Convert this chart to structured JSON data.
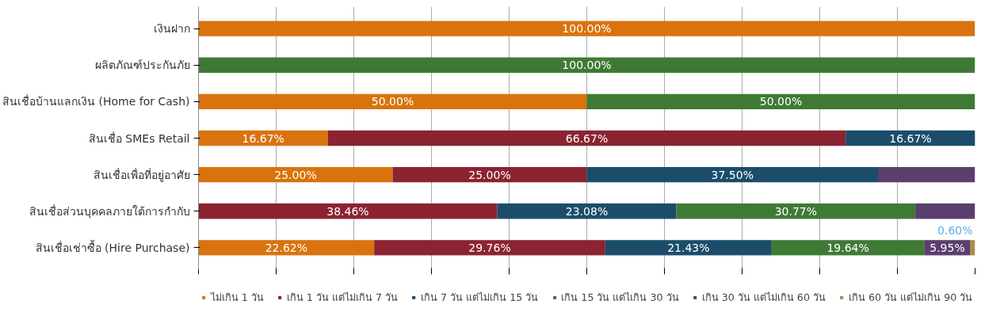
{
  "chart_data": {
    "type": "bar",
    "orientation": "horizontal",
    "stacked": true,
    "categories": [
      "เงินฝาก",
      "ผลิตภัณฑ์ประกันภัย",
      "สินเชื่อบ้านแลกเงิน (Home for Cash)",
      "สินเชื่อ SMEs Retail",
      "สินเชื่อเพื่อที่อยู่อาศัย",
      "สินเชื่อส่วนบุคคลภายใต้การกำกับ",
      "สินเชื่อเช่าซื้อ (Hire Purchase)"
    ],
    "series": [
      {
        "name": "ไม่เกิน 1 วัน",
        "color": "#d9730d",
        "values": [
          100,
          0,
          50,
          16.67,
          25,
          0,
          22.62
        ],
        "value_labels": [
          "100.00%",
          null,
          "50.00%",
          "16.67%",
          "25.00%",
          null,
          "22.62%"
        ]
      },
      {
        "name": "เกิน 1 วัน แต่ไม่เกิน 7 วัน",
        "color": "#8b2331",
        "values": [
          0,
          0,
          0,
          66.67,
          25,
          38.46,
          29.76
        ],
        "value_labels": [
          null,
          null,
          null,
          "66.67%",
          "25.00%",
          "38.46%",
          "29.76%"
        ]
      },
      {
        "name": "เกิน 7 วัน แต่ไม่เกิน 15 วัน",
        "color": "#1b4d6b",
        "values": [
          0,
          0,
          0,
          16.67,
          37.5,
          23.08,
          21.43
        ],
        "value_labels": [
          null,
          null,
          null,
          "16.67%",
          "37.50%",
          "23.08%",
          "21.43%"
        ]
      },
      {
        "name": "เกิน 15 วัน แต่ไเกิน 30 วัน",
        "color": "#3f7a35",
        "values": [
          0,
          100,
          50,
          0,
          0,
          30.77,
          19.64
        ],
        "value_labels": [
          null,
          "100.00%",
          "50.00%",
          null,
          null,
          "30.77%",
          "19.64%"
        ]
      },
      {
        "name": "เกิน 30 วัน แต่ไม่เกิน 60 วัน",
        "color": "#5a3e6e",
        "values": [
          0,
          0,
          0,
          0,
          12.5,
          7.69,
          5.95
        ],
        "value_labels": [
          null,
          null,
          null,
          null,
          null,
          null,
          "5.95%"
        ]
      },
      {
        "name": "เกิน 60 วัน แต่ไม่เกิน 90 วัน",
        "color": "#b08a4c",
        "values": [
          0,
          0,
          0,
          0,
          0,
          0,
          0.6
        ],
        "value_labels": [
          null,
          null,
          null,
          null,
          null,
          null,
          "0.60%"
        ]
      }
    ],
    "xlim": [
      0,
      100
    ],
    "xticks": [
      {
        "value": 0,
        "label": null
      },
      {
        "value": 10,
        "label": null
      },
      {
        "value": 20,
        "label": null
      },
      {
        "value": 30,
        "label": null
      },
      {
        "value": 40,
        "label": null
      },
      {
        "value": 50,
        "label": null
      },
      {
        "value": 60,
        "label": null
      },
      {
        "value": 70,
        "label": null
      },
      {
        "value": 80,
        "label": null
      },
      {
        "value": 90,
        "label": null
      },
      {
        "value": 100,
        "label": null
      }
    ],
    "grid": "x",
    "legend": "bottom",
    "tick_labels": "y"
  }
}
